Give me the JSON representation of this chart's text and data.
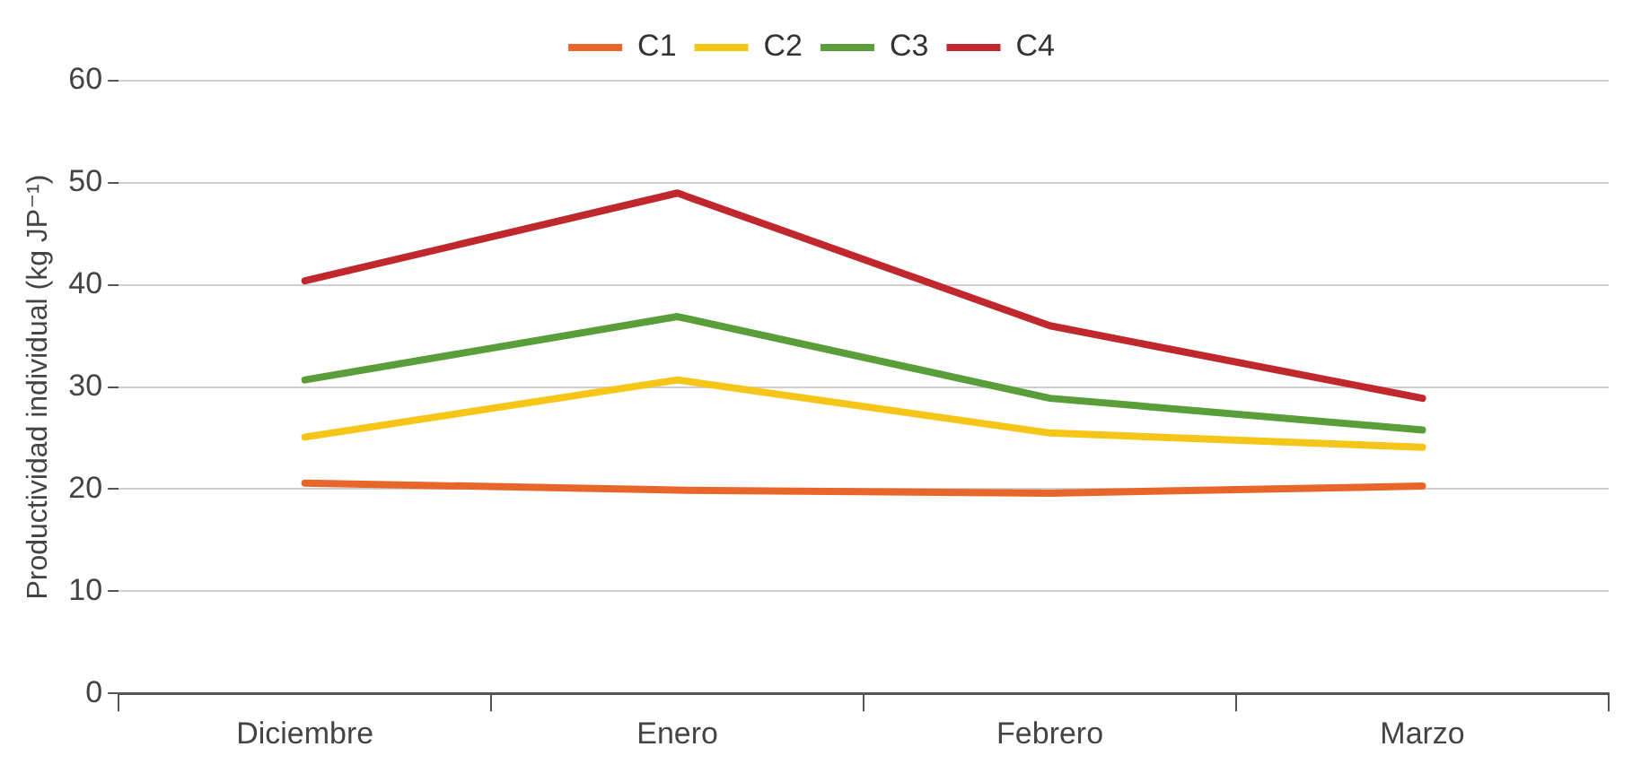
{
  "chart_data": {
    "type": "line",
    "ylabel": "Productividad individual (kg JP⁻¹)",
    "categories": [
      "Diciembre",
      "Enero",
      "Febrero",
      "Marzo"
    ],
    "series": [
      {
        "name": "C1",
        "color": "#e8662a",
        "values": [
          20.6,
          19.9,
          19.6,
          20.3
        ]
      },
      {
        "name": "C2",
        "color": "#f5c518",
        "values": [
          25.1,
          30.7,
          25.5,
          24.1
        ]
      },
      {
        "name": "C3",
        "color": "#5a9e3a",
        "values": [
          30.7,
          36.9,
          28.9,
          25.8
        ]
      },
      {
        "name": "C4",
        "color": "#c0282d",
        "values": [
          40.4,
          49.0,
          36.0,
          28.9
        ]
      }
    ],
    "ylim": [
      0,
      60
    ],
    "yticks": [
      0,
      10,
      20,
      30,
      40,
      50,
      60
    ],
    "grid": "y",
    "legend": "top",
    "marker": "none",
    "line_style": "solid"
  }
}
